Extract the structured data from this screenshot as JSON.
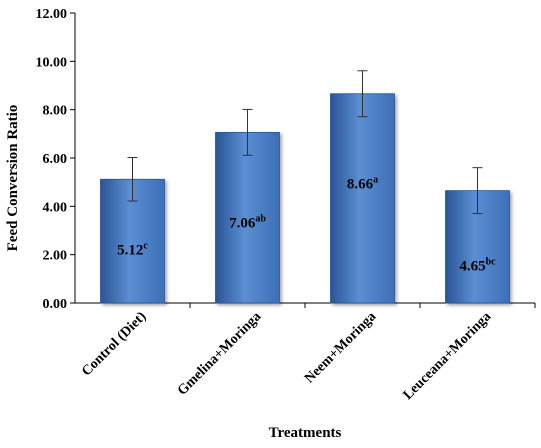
{
  "chart_data": {
    "type": "bar",
    "title": "",
    "xlabel": "Treatments",
    "ylabel": "Feed Conversion Ratio",
    "ylim": [
      0,
      12
    ],
    "ytick_step": 2,
    "ytick_labels": [
      "0.00",
      "2.00",
      "4.00",
      "6.00",
      "8.00",
      "10.00",
      "12.00"
    ],
    "grid": false,
    "legend": "none",
    "categories": [
      "Control (Diet)",
      "Gmelina+Moringa",
      "Neem+Moringa",
      "Leuceana+Moringa"
    ],
    "values": [
      5.12,
      7.06,
      8.66,
      4.65
    ],
    "error": [
      0.9,
      0.95,
      0.95,
      0.95
    ],
    "value_labels": [
      "5.12",
      "7.06",
      "8.66",
      "4.65"
    ],
    "value_superscripts": [
      "c",
      "ab",
      "a",
      "bc"
    ],
    "bar_color": "#3d6fb6",
    "bar_highlight": "#5b8ed3",
    "bar_shadow": "#2a5594",
    "error_bar_color": "#333333"
  }
}
